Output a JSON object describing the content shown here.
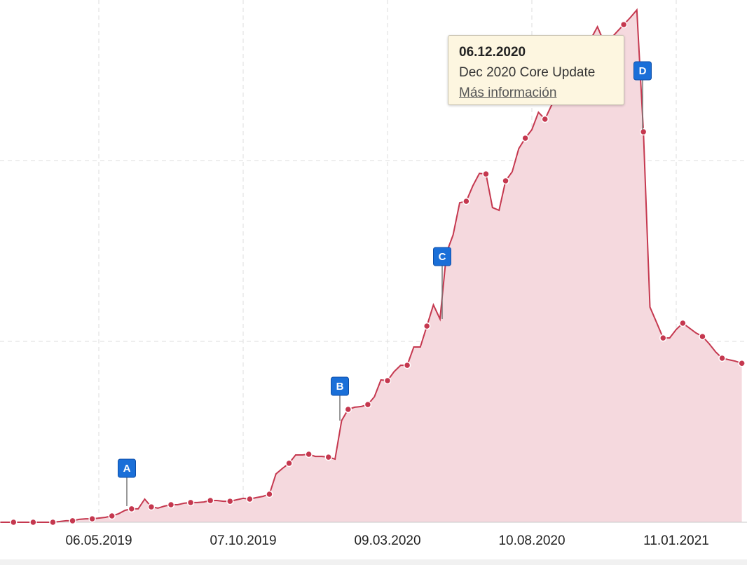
{
  "chart_data": {
    "type": "area",
    "x": [
      "21.01.2019",
      "28.01.2019",
      "04.02.2019",
      "11.02.2019",
      "18.02.2019",
      "25.02.2019",
      "04.03.2019",
      "11.03.2019",
      "18.03.2019",
      "25.03.2019",
      "01.04.2019",
      "08.04.2019",
      "15.04.2019",
      "22.04.2019",
      "29.04.2019",
      "06.05.2019",
      "13.05.2019",
      "20.05.2019",
      "27.05.2019",
      "03.06.2019",
      "10.06.2019",
      "17.06.2019",
      "24.06.2019",
      "01.07.2019",
      "08.07.2019",
      "15.07.2019",
      "22.07.2019",
      "29.07.2019",
      "05.08.2019",
      "12.08.2019",
      "19.08.2019",
      "26.08.2019",
      "02.09.2019",
      "09.09.2019",
      "16.09.2019",
      "23.09.2019",
      "30.09.2019",
      "07.10.2019",
      "14.10.2019",
      "21.10.2019",
      "28.10.2019",
      "04.11.2019",
      "11.11.2019",
      "18.11.2019",
      "25.11.2019",
      "02.12.2019",
      "09.12.2019",
      "16.12.2019",
      "23.12.2019",
      "30.12.2019",
      "06.01.2020",
      "13.01.2020",
      "20.01.2020",
      "27.01.2020",
      "03.02.2020",
      "10.02.2020",
      "17.02.2020",
      "24.02.2020",
      "02.03.2020",
      "09.03.2020",
      "16.03.2020",
      "23.03.2020",
      "30.03.2020",
      "06.04.2020",
      "13.04.2020",
      "20.04.2020",
      "27.04.2020",
      "04.05.2020",
      "11.05.2020",
      "18.05.2020",
      "25.05.2020",
      "01.06.2020",
      "08.06.2020",
      "15.06.2020",
      "22.06.2020",
      "29.06.2020",
      "06.07.2020",
      "13.07.2020",
      "20.07.2020",
      "27.07.2020",
      "03.08.2020",
      "10.08.2020",
      "17.08.2020",
      "24.08.2020",
      "31.08.2020",
      "07.09.2020",
      "14.09.2020",
      "21.09.2020",
      "28.09.2020",
      "05.10.2020",
      "12.10.2020",
      "19.10.2020",
      "26.10.2020",
      "02.11.2020",
      "09.11.2020",
      "16.11.2020",
      "23.11.2020",
      "30.11.2020",
      "07.12.2020",
      "14.12.2020",
      "21.12.2020",
      "28.12.2020",
      "04.01.2021",
      "11.01.2021",
      "18.01.2021",
      "25.01.2021",
      "01.02.2021",
      "08.02.2021",
      "15.02.2021",
      "22.02.2021",
      "01.03.2021",
      "08.03.2021",
      "15.03.2021",
      "22.03.2021"
    ],
    "series": [
      {
        "color": "#c5384f",
        "fill": "#f5d9de",
        "values": [
          0,
          0,
          0,
          0,
          0,
          0,
          0,
          0,
          0,
          0.4,
          0.8,
          0.8,
          1.6,
          1.9,
          1.9,
          2.3,
          2.7,
          3.5,
          4.7,
          6.6,
          7.4,
          7.4,
          12.8,
          8.5,
          7.8,
          8.9,
          9.7,
          9.7,
          10.5,
          10.9,
          10.9,
          11.2,
          12.0,
          12.0,
          11.6,
          11.6,
          12.4,
          13.2,
          12.8,
          13.6,
          14.3,
          15.5,
          26.7,
          29.8,
          32.6,
          37.2,
          37.2,
          37.6,
          36.4,
          36.4,
          36.0,
          34.9,
          56.2,
          62.4,
          63.6,
          64.0,
          65.1,
          69.4,
          78.7,
          78.3,
          83.3,
          86.8,
          86.8,
          96.9,
          96.9,
          108.5,
          120.2,
          112.4,
          149.2,
          158.9,
          176.7,
          177.5,
          186.0,
          192.9,
          192.6,
          174.0,
          172.5,
          188.8,
          193.8,
          206.6,
          212.4,
          217.1,
          226.7,
          222.9,
          230.6,
          234.5,
          242.2,
          248.1,
          253.9,
          260.9,
          267.4,
          274.0,
          265.5,
          267.4,
          271.3,
          275.2,
          279.1,
          283.3,
          215.9,
          119.0,
          110.5,
          101.9,
          101.9,
          106.6,
          110.1,
          107.4,
          104.7,
          102.7,
          98.8,
          94.2,
          90.7,
          89.9,
          89.1,
          87.9
        ]
      }
    ],
    "ylim": [
      0,
      288.8
    ],
    "yticks": [
      100,
      200
    ],
    "grid": true,
    "xticks": [
      "06.05.2019",
      "07.10.2019",
      "09.03.2020",
      "10.08.2020",
      "11.01.2021"
    ],
    "events": [
      {
        "label": "A"
      },
      {
        "label": "B"
      },
      {
        "label": "C"
      },
      {
        "label": "D"
      }
    ],
    "tooltip": {
      "date": "06.12.2020",
      "text": "Dec 2020 Core Update",
      "link": "Más información"
    }
  }
}
